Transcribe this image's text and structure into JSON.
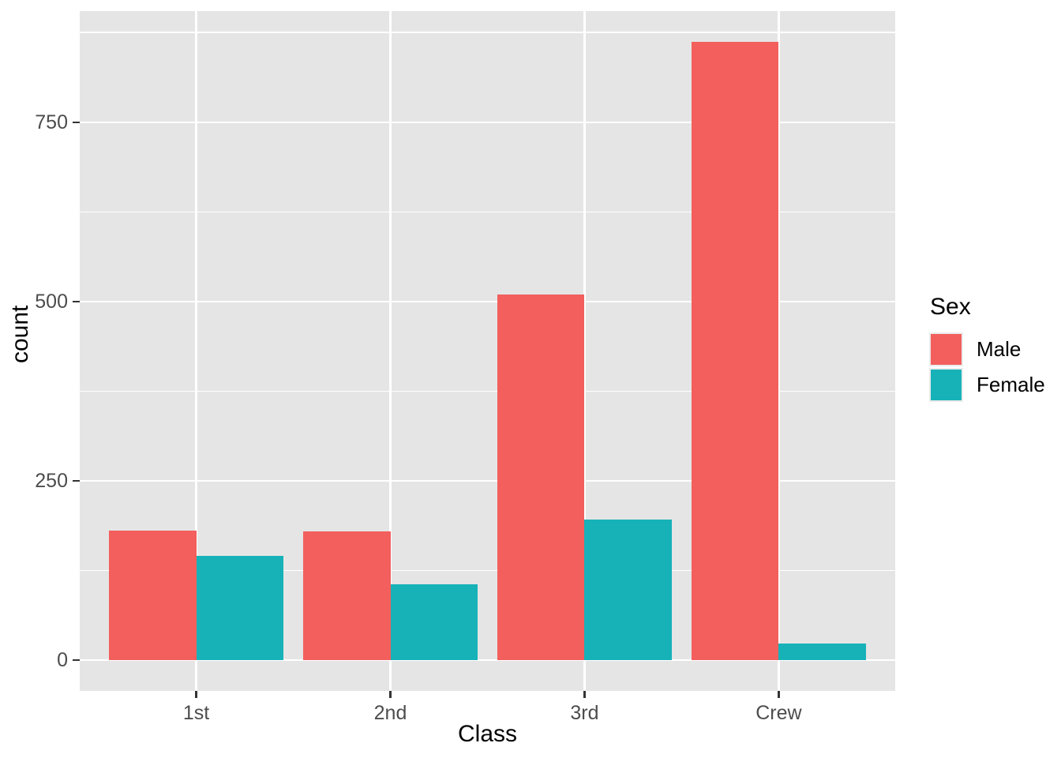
{
  "figure": {
    "background": "#FFFFFF"
  },
  "chart_data": {
    "type": "bar",
    "grouping": "dodge",
    "title": "",
    "xlabel": "Class",
    "ylabel": "count",
    "legend_title": "Sex",
    "legend_position": "right",
    "categories": [
      "1st",
      "2nd",
      "3rd",
      "Crew"
    ],
    "series": [
      {
        "name": "Male",
        "color": "#F25F5C",
        "values": [
          180,
          179,
          510,
          862
        ]
      },
      {
        "name": "Female",
        "color": "#17B2B8",
        "values": [
          145,
          106,
          196,
          23
        ]
      }
    ],
    "y_major_ticks": [
      0,
      250,
      500,
      750
    ],
    "y_minor_gridlines": [
      125,
      375,
      625,
      875
    ],
    "ylim": [
      -43,
      905
    ],
    "grid": true,
    "panel_background": "#E5E5E5",
    "gridline_color": "#FFFFFF",
    "tick_label_color": "#4D4D4D",
    "axis_title_color": "#000000",
    "bar_width_fraction": 0.45,
    "category_expand": 0.6
  }
}
